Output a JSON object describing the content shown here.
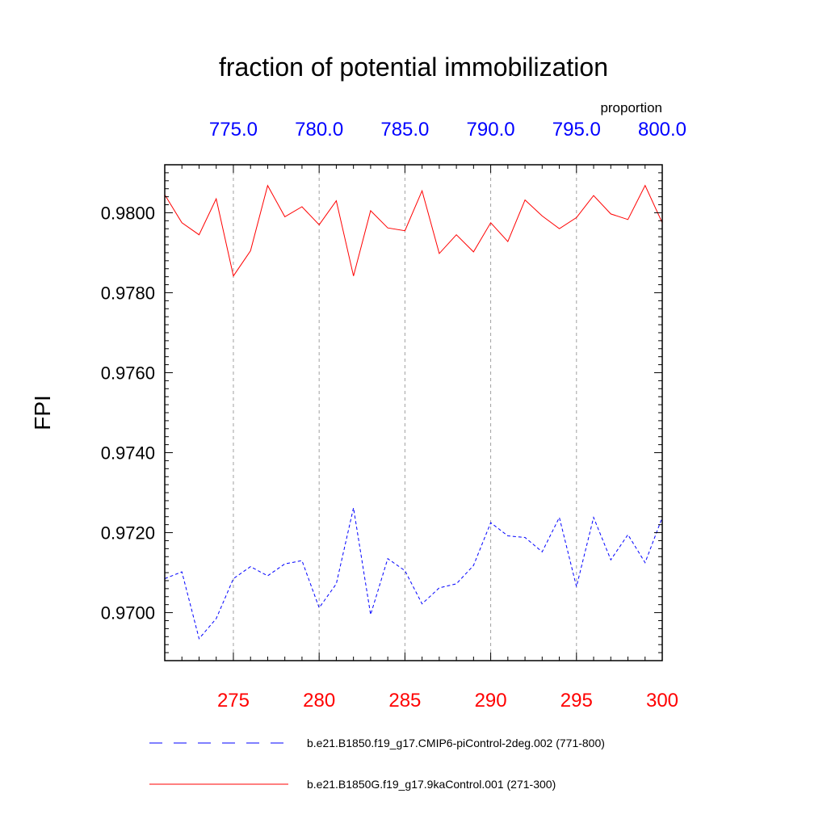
{
  "chart_data": {
    "type": "line",
    "title": "fraction of potential immobilization",
    "ylabel": "FPI",
    "units": "proportion",
    "ylim": [
      0.9688,
      0.9812
    ],
    "yticks": [
      "0.9700",
      "0.9720",
      "0.9740",
      "0.9760",
      "0.9780",
      "0.9800"
    ],
    "bottom_axis": {
      "color": "#ff0000",
      "range": [
        271,
        300
      ],
      "ticks": [
        "275",
        "280",
        "285",
        "290",
        "295",
        "300"
      ]
    },
    "top_axis": {
      "color": "#0000ff",
      "range": [
        771,
        800
      ],
      "ticks": [
        "775.0",
        "780.0",
        "785.0",
        "790.0",
        "795.0",
        "800.0"
      ]
    },
    "grid": "vertical dashed at major ticks",
    "series": [
      {
        "name": "b.e21.B1850.f19_g17.CMIP6-piControl-2deg.002 (771-800)",
        "color": "#0000ff",
        "dash": "dashed",
        "x": [
          771,
          772,
          773,
          774,
          775,
          776,
          777,
          778,
          779,
          780,
          781,
          782,
          783,
          784,
          785,
          786,
          787,
          788,
          789,
          790,
          791,
          792,
          793,
          794,
          795,
          796,
          797,
          798,
          799,
          800
        ],
        "values": [
          0.97085,
          0.97102,
          0.96935,
          0.96985,
          0.97085,
          0.97115,
          0.97092,
          0.97122,
          0.9713,
          0.97012,
          0.97072,
          0.97262,
          0.96995,
          0.97135,
          0.97105,
          0.97022,
          0.97062,
          0.97072,
          0.97118,
          0.97225,
          0.97192,
          0.97188,
          0.97152,
          0.97238,
          0.97065,
          0.97238,
          0.97132,
          0.97195,
          0.97125,
          0.97238
        ]
      },
      {
        "name": "b.e21.B1850G.f19_g17.9kaControl.001 (271-300)",
        "color": "#ff0000",
        "dash": "solid",
        "x": [
          271,
          272,
          273,
          274,
          275,
          276,
          277,
          278,
          279,
          280,
          281,
          282,
          283,
          284,
          285,
          286,
          287,
          288,
          289,
          290,
          291,
          292,
          293,
          294,
          295,
          296,
          297,
          298,
          299,
          300
        ],
        "values": [
          0.98045,
          0.97975,
          0.97945,
          0.98035,
          0.97842,
          0.97905,
          0.98068,
          0.9799,
          0.98015,
          0.9797,
          0.9803,
          0.97842,
          0.98005,
          0.97962,
          0.97955,
          0.98055,
          0.97898,
          0.97945,
          0.97902,
          0.97975,
          0.97928,
          0.98032,
          0.97992,
          0.9796,
          0.97988,
          0.98043,
          0.97997,
          0.97983,
          0.98068,
          0.97975
        ]
      }
    ],
    "legend": {
      "placement": "bottom",
      "entries": [
        {
          "label": "b.e21.B1850.f19_g17.CMIP6-piControl-2deg.002 (771-800)",
          "color": "#0000ff",
          "dash": "dashed"
        },
        {
          "label": "b.e21.B1850G.f19_g17.9kaControl.001 (271-300)",
          "color": "#ff0000",
          "dash": "solid"
        }
      ]
    }
  }
}
